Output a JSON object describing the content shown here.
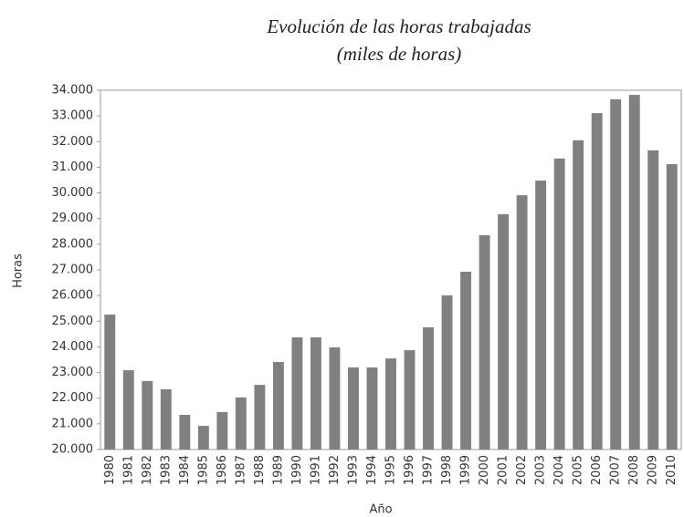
{
  "chart_data": {
    "type": "bar",
    "title": "Evolución de las horas trabajadas",
    "subtitle": "(miles de horas)",
    "x_label": "Año",
    "y_label": "Horas",
    "categories": [
      "1980",
      "1981",
      "1982",
      "1983",
      "1984",
      "1985",
      "1986",
      "1987",
      "1988",
      "1989",
      "1990",
      "1991",
      "1992",
      "1993",
      "1994",
      "1995",
      "1996",
      "1997",
      "1998",
      "1999",
      "2000",
      "2001",
      "2002",
      "2003",
      "2004",
      "2005",
      "2006",
      "2007",
      "2008",
      "2009",
      "2010"
    ],
    "values": [
      25260,
      23090,
      22670,
      22350,
      21350,
      20920,
      21460,
      22030,
      22520,
      23410,
      24370,
      24370,
      23980,
      23200,
      23200,
      23550,
      23870,
      24760,
      26010,
      26930,
      28350,
      29170,
      29910,
      30480,
      31340,
      32050,
      33110,
      33650,
      33820,
      31660,
      31120
    ],
    "color": "#808080",
    "ylim": [
      20000,
      34000
    ],
    "yticks": [
      {
        "value": 20000,
        "label": "20.000"
      },
      {
        "value": 21000,
        "label": "21.000"
      },
      {
        "value": 22000,
        "label": "22.000"
      },
      {
        "value": 23000,
        "label": "23.000"
      },
      {
        "value": 24000,
        "label": "24.000"
      },
      {
        "value": 25000,
        "label": "25.000"
      },
      {
        "value": 26000,
        "label": "26.000"
      },
      {
        "value": 27000,
        "label": "27.000"
      },
      {
        "value": 28000,
        "label": "28.000"
      },
      {
        "value": 29000,
        "label": "29.000"
      },
      {
        "value": 30000,
        "label": "30.000"
      },
      {
        "value": 31000,
        "label": "31.000"
      },
      {
        "value": 32000,
        "label": "32.000"
      },
      {
        "value": 33000,
        "label": "33.000"
      },
      {
        "value": 34000,
        "label": "34.000"
      }
    ],
    "grid": false
  }
}
